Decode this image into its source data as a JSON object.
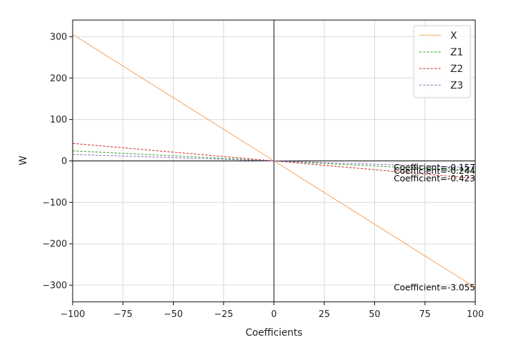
{
  "chart_data": {
    "type": "line",
    "title": "",
    "xlabel": "Coefficients",
    "ylabel": "W",
    "xlim": [
      -100,
      100
    ],
    "ylim": [
      -340,
      340
    ],
    "xticks": [
      -100,
      -75,
      -50,
      -25,
      0,
      25,
      50,
      75,
      100
    ],
    "yticks": [
      -300,
      -200,
      -100,
      0,
      100,
      200,
      300
    ],
    "xtick_labels": [
      "−100",
      "−75",
      "−50",
      "−25",
      "0",
      "25",
      "50",
      "75",
      "100"
    ],
    "ytick_labels": [
      "−300",
      "−200",
      "−100",
      "0",
      "100",
      "200",
      "300"
    ],
    "grid": true,
    "legend_position": "top-right",
    "series": [
      {
        "name": "X",
        "color": "#f7a35c",
        "style": "solid",
        "x": [
          -100,
          100
        ],
        "y": [
          305.5,
          -305.5
        ],
        "slope": -3.055
      },
      {
        "name": "Z1",
        "color": "#2ca02c",
        "style": "dashed",
        "x": [
          -100,
          100
        ],
        "y": [
          24.4,
          -24.4
        ],
        "slope": -0.244
      },
      {
        "name": "Z2",
        "color": "#d62728",
        "style": "dashed",
        "x": [
          -100,
          100
        ],
        "y": [
          42.3,
          -42.3
        ],
        "slope": -0.423
      },
      {
        "name": "Z3",
        "color": "#9467bd",
        "style": "dashed",
        "x": [
          -100,
          100
        ],
        "y": [
          15.7,
          -15.7
        ],
        "slope": -0.157
      }
    ],
    "annotations": [
      {
        "text": "Coefficient=-0.157",
        "x": 100,
        "y": -15.7
      },
      {
        "text": "Coefficient=-0.244",
        "x": 100,
        "y": -24.4
      },
      {
        "text": "Coefficient=-0.423",
        "x": 100,
        "y": -42.3
      },
      {
        "text": "Coefficient=-3.055",
        "x": 100,
        "y": -305.5
      }
    ]
  }
}
